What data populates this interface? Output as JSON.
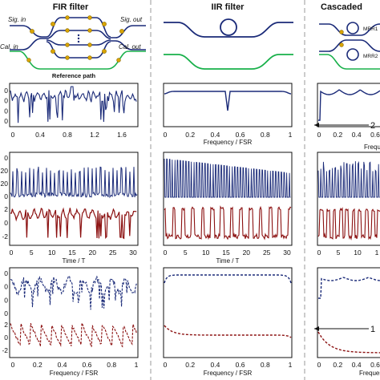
{
  "columns": [
    {
      "title": "FIR filter"
    },
    {
      "title": "IIR filter"
    },
    {
      "title": "Cascaded"
    }
  ],
  "schematic": {
    "fir": {
      "sig_in": "Sig. in",
      "sig_out": "Sig. out",
      "cal_in": "Cal. in",
      "cal_out": "Cal. out",
      "reference": "Reference path"
    },
    "cascaded": {
      "mrr1": "MRR1",
      "mrr2": "MRR2"
    }
  },
  "axes": {
    "freq_label": "Frequency / FSR",
    "time_label": "Time / T",
    "fir_freq_ticks": [
      "0",
      "0.4",
      "0.8",
      "1.2",
      "1.6"
    ],
    "freq_ticks": [
      "0",
      "0.2",
      "0.4",
      "0.6",
      "0.8",
      "1"
    ],
    "cascaded_freq_ticks": [
      "0",
      "0.2",
      "0.4",
      "0.6"
    ],
    "time_ticks": [
      "0",
      "5",
      "10",
      "15",
      "20",
      "25",
      "30"
    ],
    "cascaded_time_ticks": [
      "0",
      "5",
      "10",
      "1"
    ],
    "fir_y1": [
      "0",
      "0",
      "0",
      "0"
    ],
    "fir_y2": [
      "0",
      "20",
      "20",
      "0"
    ],
    "fir_y3": [
      "2",
      "0",
      "-2"
    ],
    "fir_y4": [
      "0",
      "0",
      "0",
      "0"
    ],
    "fir_y5": [
      "2",
      "0",
      "-2"
    ]
  },
  "annotations": {
    "range_top": "2",
    "range_bottom": "1"
  },
  "colors": {
    "navy": "#1a2a78",
    "maroon": "#8b1010",
    "green": "#18b04a",
    "gold": "#d9a400",
    "divider": "#999999"
  }
}
